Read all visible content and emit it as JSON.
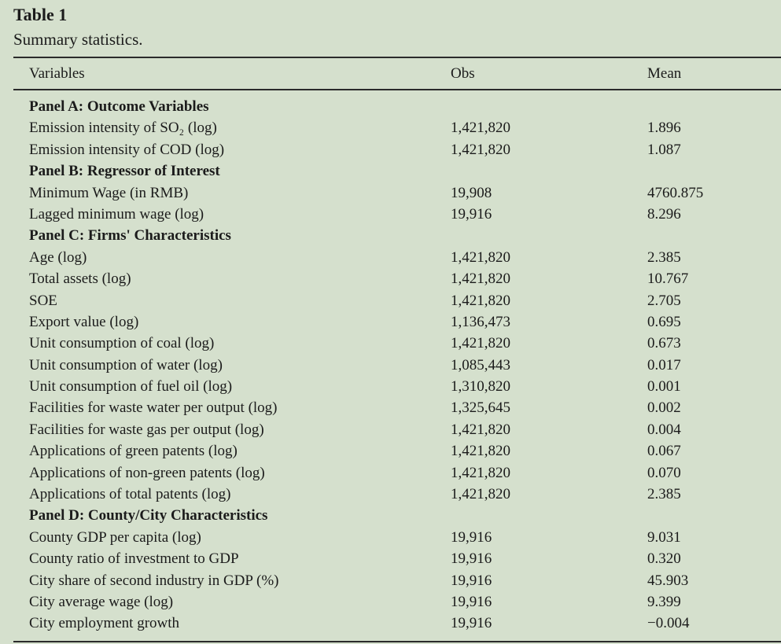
{
  "table": {
    "label": "Table 1",
    "caption": "Summary statistics.",
    "headers": {
      "variables": "Variables",
      "obs": "Obs",
      "mean": "Mean"
    },
    "rows": [
      {
        "type": "panel",
        "label": "Panel A: Outcome Variables",
        "obs": "",
        "mean": ""
      },
      {
        "type": "data",
        "label": "Emission intensity of SO₂ (log)",
        "obs": "1,421,820",
        "mean": "1.896"
      },
      {
        "type": "data",
        "label": "Emission intensity of COD (log)",
        "obs": "1,421,820",
        "mean": "1.087"
      },
      {
        "type": "panel",
        "label": "Panel B: Regressor of Interest",
        "obs": "",
        "mean": ""
      },
      {
        "type": "data",
        "label": "Minimum Wage (in RMB)",
        "obs": "19,908",
        "mean": "4760.875"
      },
      {
        "type": "data",
        "label": "Lagged minimum wage (log)",
        "obs": "19,916",
        "mean": "8.296"
      },
      {
        "type": "panel",
        "label": "Panel C: Firms' Characteristics",
        "obs": "",
        "mean": ""
      },
      {
        "type": "data",
        "label": "Age (log)",
        "obs": "1,421,820",
        "mean": "2.385"
      },
      {
        "type": "data",
        "label": "Total assets (log)",
        "obs": "1,421,820",
        "mean": "10.767"
      },
      {
        "type": "data",
        "label": "SOE",
        "obs": "1,421,820",
        "mean": "2.705"
      },
      {
        "type": "data",
        "label": "Export value (log)",
        "obs": "1,136,473",
        "mean": "0.695"
      },
      {
        "type": "data",
        "label": "Unit consumption of coal (log)",
        "obs": "1,421,820",
        "mean": "0.673"
      },
      {
        "type": "data",
        "label": "Unit consumption of water (log)",
        "obs": "1,085,443",
        "mean": "0.017"
      },
      {
        "type": "data",
        "label": "Unit consumption of fuel oil (log)",
        "obs": "1,310,820",
        "mean": "0.001"
      },
      {
        "type": "data",
        "label": "Facilities for waste water per output (log)",
        "obs": "1,325,645",
        "mean": "0.002"
      },
      {
        "type": "data",
        "label": "Facilities for waste gas per output (log)",
        "obs": "1,421,820",
        "mean": "0.004"
      },
      {
        "type": "data",
        "label": "Applications of green patents (log)",
        "obs": "1,421,820",
        "mean": "0.067"
      },
      {
        "type": "data",
        "label": "Applications of non-green patents (log)",
        "obs": "1,421,820",
        "mean": "0.070"
      },
      {
        "type": "data",
        "label": "Applications of total patents (log)",
        "obs": "1,421,820",
        "mean": "2.385"
      },
      {
        "type": "panel",
        "label": "Panel D: County/City Characteristics",
        "obs": "",
        "mean": ""
      },
      {
        "type": "data",
        "label": "County GDP per capita (log)",
        "obs": "19,916",
        "mean": "9.031"
      },
      {
        "type": "data",
        "label": "County ratio of investment to GDP",
        "obs": "19,916",
        "mean": "0.320"
      },
      {
        "type": "data",
        "label": "City share of second industry in GDP (%)",
        "obs": "19,916",
        "mean": "45.903"
      },
      {
        "type": "data",
        "label": "City average wage (log)",
        "obs": "19,916",
        "mean": "9.399"
      },
      {
        "type": "data",
        "label": "City employment growth",
        "obs": "19,916",
        "mean": "−0.004"
      }
    ]
  }
}
